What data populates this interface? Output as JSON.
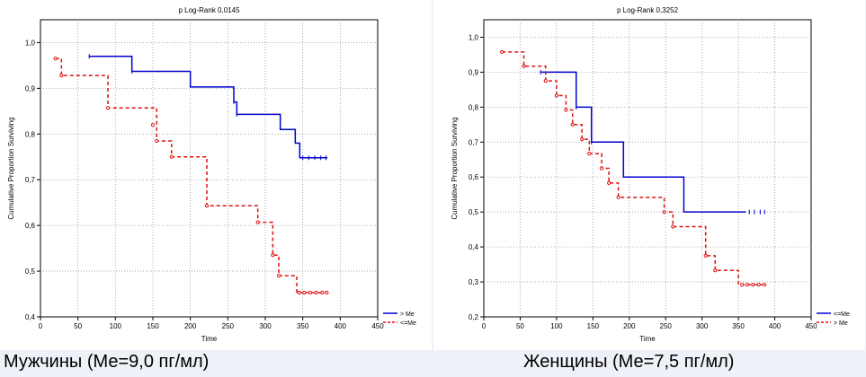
{
  "chart_data": [
    {
      "type": "line",
      "title": "p Log-Rank 0,0145",
      "xlabel": "Time",
      "ylabel": "Cumulative Proportion Surviving",
      "xlim": [
        0,
        450
      ],
      "ylim": [
        0.4,
        1.05
      ],
      "x_ticks": [
        0,
        50,
        100,
        150,
        200,
        250,
        300,
        350,
        400,
        450
      ],
      "x_tick_labels": [
        "0",
        "50",
        "100",
        "150",
        "200",
        "250",
        "300",
        "350",
        "400",
        "450"
      ],
      "y_ticks": [
        0.4,
        0.5,
        0.6,
        0.7,
        0.8,
        0.9,
        1.0
      ],
      "y_tick_labels": [
        "0,4",
        "0,5",
        "0,6",
        "0,7",
        "0,8",
        "0,9",
        "1,0"
      ],
      "legend_position": "bottom-right-outside",
      "series": [
        {
          "name": "> Me",
          "color": "#0000cc",
          "dash": "solid",
          "x": [
            65,
            122,
            200,
            258,
            262,
            320,
            340,
            346,
            383
          ],
          "y": [
            0.97,
            0.937,
            0.903,
            0.87,
            0.843,
            0.81,
            0.78,
            0.748,
            0.748
          ],
          "censored_x": [
            65,
            122,
            258,
            262,
            350,
            358,
            366,
            374,
            381
          ],
          "censored_y": [
            0.97,
            0.937,
            0.87,
            0.843,
            0.748,
            0.748,
            0.748,
            0.748,
            0.748
          ]
        },
        {
          "name": "<=Me",
          "color": "#dd1111",
          "dash": "dashed",
          "x": [
            20,
            28,
            90,
            155,
            175,
            222,
            290,
            310,
            318,
            342,
            383
          ],
          "y": [
            0.965,
            0.928,
            0.857,
            0.785,
            0.75,
            0.643,
            0.607,
            0.535,
            0.49,
            0.453,
            0.453
          ],
          "censored_x": [
            20,
            28,
            90,
            150,
            155,
            175,
            222,
            290,
            310,
            318,
            345,
            352,
            360,
            368,
            376,
            382
          ],
          "censored_y": [
            0.965,
            0.928,
            0.857,
            0.82,
            0.785,
            0.75,
            0.643,
            0.607,
            0.535,
            0.49,
            0.453,
            0.453,
            0.453,
            0.453,
            0.453,
            0.453
          ]
        }
      ],
      "caption": "Мужчины (Ме=9,0 пг/мл)"
    },
    {
      "type": "line",
      "title": "p Log-Rank 0,3252",
      "xlabel": "Time",
      "ylabel": "Cumulative Proportion Surviving",
      "xlim": [
        0,
        450
      ],
      "ylim": [
        0.2,
        1.05
      ],
      "x_ticks": [
        0,
        50,
        100,
        150,
        200,
        250,
        300,
        350,
        400,
        450
      ],
      "x_tick_labels": [
        "0",
        "50",
        "100",
        "150",
        "200",
        "250",
        "300",
        "350",
        "400",
        "450"
      ],
      "y_ticks": [
        0.2,
        0.3,
        0.4,
        0.5,
        0.6,
        0.7,
        0.8,
        0.9,
        1.0
      ],
      "y_tick_labels": [
        "0,2",
        "0,3",
        "0,4",
        "0,5",
        "0,6",
        "0,7",
        "0,8",
        "0,9",
        "1,0"
      ],
      "legend_position": "bottom-right-outside",
      "series": [
        {
          "name": "<=Me",
          "color": "#0000cc",
          "dash": "solid",
          "x": [
            78,
            127,
            148,
            192,
            275,
            360
          ],
          "y": [
            0.9,
            0.8,
            0.7,
            0.6,
            0.5,
            0.5
          ],
          "censored_x": [
            78,
            127,
            148,
            365,
            372,
            380,
            386
          ],
          "censored_y": [
            0.9,
            0.8,
            0.7,
            0.5,
            0.5,
            0.5,
            0.5
          ]
        },
        {
          "name": "> Me",
          "color": "#dd1111",
          "dash": "dashed",
          "x": [
            25,
            55,
            85,
            100,
            113,
            122,
            135,
            145,
            162,
            172,
            185,
            220,
            248,
            260,
            305,
            318,
            350,
            385
          ],
          "y": [
            0.958,
            0.917,
            0.875,
            0.833,
            0.792,
            0.75,
            0.708,
            0.667,
            0.625,
            0.583,
            0.542,
            0.542,
            0.5,
            0.458,
            0.375,
            0.333,
            0.292,
            0.292
          ],
          "censored_x": [
            25,
            55,
            85,
            100,
            113,
            122,
            135,
            145,
            162,
            172,
            185,
            248,
            260,
            305,
            318,
            355,
            362,
            370,
            378,
            386
          ],
          "censored_y": [
            0.958,
            0.917,
            0.875,
            0.833,
            0.792,
            0.75,
            0.708,
            0.667,
            0.625,
            0.583,
            0.542,
            0.5,
            0.458,
            0.375,
            0.333,
            0.292,
            0.292,
            0.292,
            0.292,
            0.292
          ]
        }
      ],
      "caption": "Женщины (Ме=7,5 пг/мл)"
    }
  ]
}
